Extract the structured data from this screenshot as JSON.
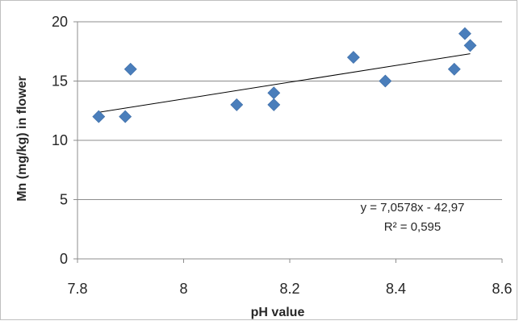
{
  "chart_data": {
    "type": "scatter",
    "title": "",
    "xlabel": "pH value",
    "ylabel": "Mn (mg/kg) in flower",
    "xlim": [
      7.8,
      8.6
    ],
    "ylim": [
      0,
      20
    ],
    "x_ticks": [
      7.8,
      8,
      8.2,
      8.4,
      8.6
    ],
    "x_tick_labels": [
      "7.8",
      "8",
      "8.2",
      "8.4",
      "8.6"
    ],
    "y_ticks": [
      0,
      5,
      10,
      15,
      20
    ],
    "y_tick_labels": [
      "0",
      "5",
      "10",
      "15",
      "20"
    ],
    "grid": "horizontal",
    "legend": "none",
    "marker": "diamond",
    "marker_color": "#4a7ebb",
    "points": [
      {
        "x": 7.84,
        "y": 12
      },
      {
        "x": 7.89,
        "y": 12
      },
      {
        "x": 7.9,
        "y": 16
      },
      {
        "x": 8.1,
        "y": 13
      },
      {
        "x": 8.17,
        "y": 13
      },
      {
        "x": 8.17,
        "y": 14
      },
      {
        "x": 8.32,
        "y": 17
      },
      {
        "x": 8.38,
        "y": 15
      },
      {
        "x": 8.51,
        "y": 16
      },
      {
        "x": 8.53,
        "y": 19
      },
      {
        "x": 8.54,
        "y": 18
      }
    ],
    "trendline": {
      "type": "linear",
      "slope": 7.0578,
      "intercept": -42.97,
      "x_range": [
        7.84,
        8.54
      ],
      "color": "#000000",
      "equation_text": "y = 7,0578x - 42,97",
      "r2_text": "R² = 0,595"
    }
  }
}
